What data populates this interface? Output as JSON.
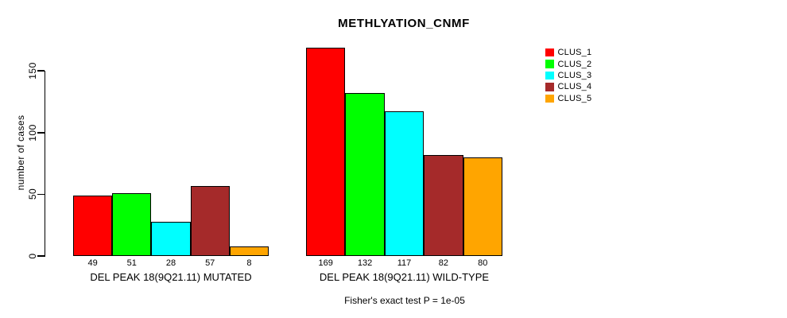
{
  "title": "METHLYATION_CNMF",
  "footer": "Fisher's exact test P = 1e-05",
  "y_axis": {
    "label": "number of cases",
    "ticks": [
      0,
      50,
      100,
      150
    ]
  },
  "legend": {
    "position": "right",
    "items": [
      {
        "label": "CLUS_1",
        "color": "#FF0000"
      },
      {
        "label": "CLUS_2",
        "color": "#00FF00"
      },
      {
        "label": "CLUS_3",
        "color": "#00FFFF"
      },
      {
        "label": "CLUS_4",
        "color": "#A52A2A"
      },
      {
        "label": "CLUS_5",
        "color": "#FFA500"
      }
    ]
  },
  "chart_data": {
    "type": "bar",
    "title": "METHLYATION_CNMF",
    "ylabel": "number of cases",
    "ylim": [
      0,
      170
    ],
    "yticks": [
      0,
      50,
      100,
      150
    ],
    "grid": false,
    "legend_position": "right",
    "series_labels": [
      "CLUS_1",
      "CLUS_2",
      "CLUS_3",
      "CLUS_4",
      "CLUS_5"
    ],
    "colors": [
      "#FF0000",
      "#00FF00",
      "#00FFFF",
      "#A52A2A",
      "#FFA500"
    ],
    "groups": [
      {
        "label": "DEL PEAK 18(9Q21.11) MUTATED",
        "values": [
          49,
          51,
          28,
          57,
          8
        ]
      },
      {
        "label": "DEL PEAK 18(9Q21.11) WILD-TYPE",
        "values": [
          169,
          132,
          117,
          82,
          80
        ]
      }
    ],
    "annotation": "Fisher's exact test P = 1e-05"
  }
}
